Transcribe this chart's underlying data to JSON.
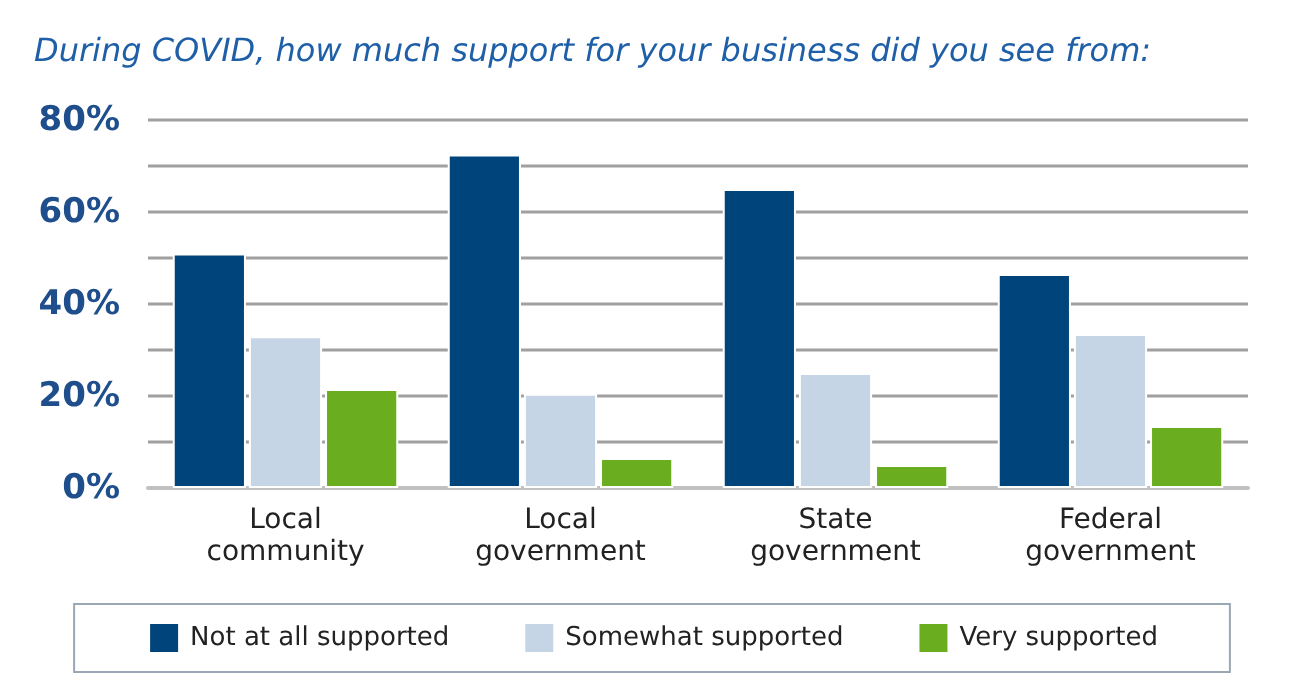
{
  "chart_data": {
    "type": "bar",
    "title": "During COVID, how much support for your business did you see from:",
    "categories": [
      "Local\ncommunity",
      "Local\ngovernment",
      "State\ngovernment",
      "Federal\ngovernment"
    ],
    "series": [
      {
        "name": "Not at all supported",
        "color": "#00447c",
        "values": [
          51,
          72.5,
          65,
          46.5
        ]
      },
      {
        "name": "Somewhat supported",
        "color": "#c5d5e6",
        "values": [
          33,
          20.5,
          25,
          33.5
        ]
      },
      {
        "name": "Very supported",
        "color": "#6aad1e",
        "values": [
          21.5,
          6.5,
          5,
          13.5
        ]
      }
    ],
    "ylim": [
      0,
      80
    ],
    "yticks": [
      {
        "value": 0,
        "label": "0%"
      },
      {
        "value": 10,
        "label": null
      },
      {
        "value": 20,
        "label": "20%"
      },
      {
        "value": 30,
        "label": null
      },
      {
        "value": 40,
        "label": "40%"
      },
      {
        "value": 50,
        "label": null
      },
      {
        "value": 60,
        "label": "60%"
      },
      {
        "value": 70,
        "label": null
      },
      {
        "value": 80,
        "label": "80%"
      }
    ],
    "grid": "y",
    "legend": "bottom"
  }
}
